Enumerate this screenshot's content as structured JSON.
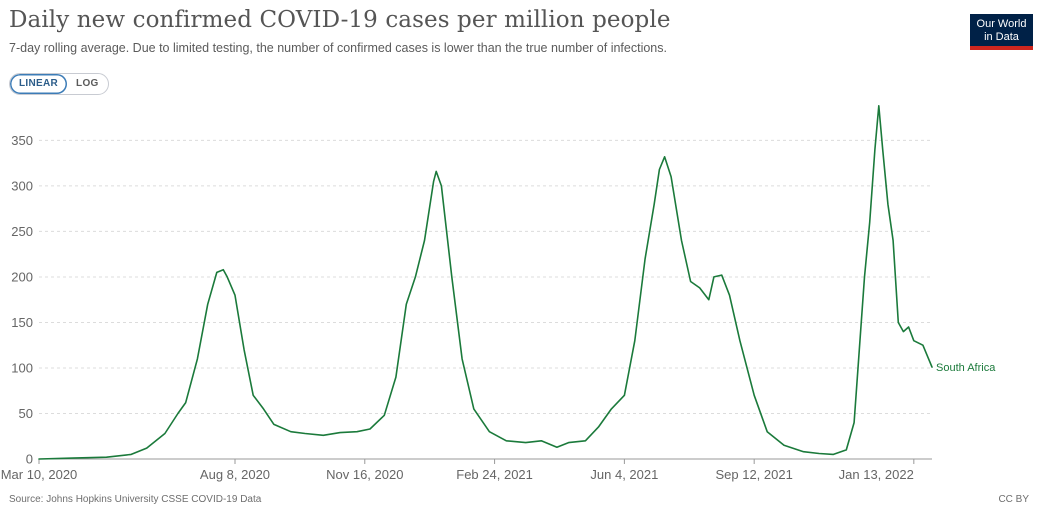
{
  "header": {
    "title": "Daily new confirmed COVID-19 cases per million people",
    "subtitle": "7-day rolling average. Due to limited testing, the number of confirmed cases is lower than the true number of infections."
  },
  "controls": {
    "linear_label": "LINEAR",
    "log_label": "LOG",
    "active": "linear"
  },
  "logo": {
    "line1": "Our World",
    "line2": "in Data"
  },
  "footer": {
    "source": "Source: Johns Hopkins University CSSE COVID-19 Data",
    "license": "CC BY"
  },
  "colors": {
    "series": "#1b7a3b",
    "logo_bg": "#002147",
    "logo_accent": "#ce261e",
    "toggle_active": "#3c7cb7"
  },
  "chart_data": {
    "type": "line",
    "title": "Daily new confirmed COVID-19 cases per million people",
    "xlabel": "",
    "ylabel": "",
    "ylim": [
      0,
      390
    ],
    "yticks": [
      0,
      50,
      100,
      150,
      200,
      250,
      300,
      350
    ],
    "xlim": [
      "2020-03-10",
      "2022-01-27"
    ],
    "xticks": [
      {
        "date": "2020-03-10",
        "label": "Mar 10, 2020"
      },
      {
        "date": "2020-08-08",
        "label": "Aug 8, 2020"
      },
      {
        "date": "2020-11-16",
        "label": "Nov 16, 2020"
      },
      {
        "date": "2021-02-24",
        "label": "Feb 24, 2021"
      },
      {
        "date": "2021-06-04",
        "label": "Jun 4, 2021"
      },
      {
        "date": "2021-09-12",
        "label": "Sep 12, 2021"
      },
      {
        "date": "2022-01-13",
        "label": "Jan 13, 2022"
      }
    ],
    "grid": "horizontal-dashed",
    "legend": "end-of-line label",
    "series": [
      {
        "name": "South Africa",
        "color": "#1b7a3b",
        "points": [
          [
            "2020-03-10",
            0
          ],
          [
            "2020-04-05",
            1
          ],
          [
            "2020-05-01",
            2
          ],
          [
            "2020-05-20",
            5
          ],
          [
            "2020-06-01",
            12
          ],
          [
            "2020-06-15",
            28
          ],
          [
            "2020-06-25",
            50
          ],
          [
            "2020-07-01",
            62
          ],
          [
            "2020-07-10",
            110
          ],
          [
            "2020-07-18",
            170
          ],
          [
            "2020-07-25",
            205
          ],
          [
            "2020-07-30",
            208
          ],
          [
            "2020-08-02",
            200
          ],
          [
            "2020-08-08",
            180
          ],
          [
            "2020-08-15",
            120
          ],
          [
            "2020-08-22",
            70
          ],
          [
            "2020-08-30",
            55
          ],
          [
            "2020-09-07",
            38
          ],
          [
            "2020-09-20",
            30
          ],
          [
            "2020-10-01",
            28
          ],
          [
            "2020-10-15",
            26
          ],
          [
            "2020-10-28",
            29
          ],
          [
            "2020-11-10",
            30
          ],
          [
            "2020-11-20",
            33
          ],
          [
            "2020-12-01",
            48
          ],
          [
            "2020-12-10",
            90
          ],
          [
            "2020-12-18",
            170
          ],
          [
            "2020-12-25",
            200
          ],
          [
            "2021-01-01",
            240
          ],
          [
            "2021-01-08",
            305
          ],
          [
            "2021-01-10",
            316
          ],
          [
            "2021-01-14",
            300
          ],
          [
            "2021-01-22",
            200
          ],
          [
            "2021-01-30",
            110
          ],
          [
            "2021-02-08",
            55
          ],
          [
            "2021-02-20",
            30
          ],
          [
            "2021-03-05",
            20
          ],
          [
            "2021-03-20",
            18
          ],
          [
            "2021-04-01",
            20
          ],
          [
            "2021-04-13",
            13
          ],
          [
            "2021-04-22",
            18
          ],
          [
            "2021-05-05",
            20
          ],
          [
            "2021-05-15",
            35
          ],
          [
            "2021-05-25",
            55
          ],
          [
            "2021-06-04",
            70
          ],
          [
            "2021-06-12",
            130
          ],
          [
            "2021-06-20",
            220
          ],
          [
            "2021-06-27",
            280
          ],
          [
            "2021-07-01",
            318
          ],
          [
            "2021-07-05",
            332
          ],
          [
            "2021-07-10",
            310
          ],
          [
            "2021-07-18",
            240
          ],
          [
            "2021-07-25",
            195
          ],
          [
            "2021-08-01",
            188
          ],
          [
            "2021-08-08",
            175
          ],
          [
            "2021-08-12",
            200
          ],
          [
            "2021-08-18",
            202
          ],
          [
            "2021-08-24",
            180
          ],
          [
            "2021-09-01",
            130
          ],
          [
            "2021-09-12",
            70
          ],
          [
            "2021-09-22",
            30
          ],
          [
            "2021-10-05",
            15
          ],
          [
            "2021-10-20",
            8
          ],
          [
            "2021-11-01",
            6
          ],
          [
            "2021-11-12",
            5
          ],
          [
            "2021-11-22",
            10
          ],
          [
            "2021-11-28",
            40
          ],
          [
            "2021-12-02",
            120
          ],
          [
            "2021-12-06",
            200
          ],
          [
            "2021-12-10",
            260
          ],
          [
            "2021-12-14",
            340
          ],
          [
            "2021-12-17",
            388
          ],
          [
            "2021-12-20",
            340
          ],
          [
            "2021-12-24",
            280
          ],
          [
            "2021-12-28",
            240
          ],
          [
            "2022-01-01",
            150
          ],
          [
            "2022-01-05",
            140
          ],
          [
            "2022-01-09",
            145
          ],
          [
            "2022-01-13",
            130
          ],
          [
            "2022-01-20",
            125
          ],
          [
            "2022-01-27",
            101
          ]
        ]
      }
    ]
  }
}
